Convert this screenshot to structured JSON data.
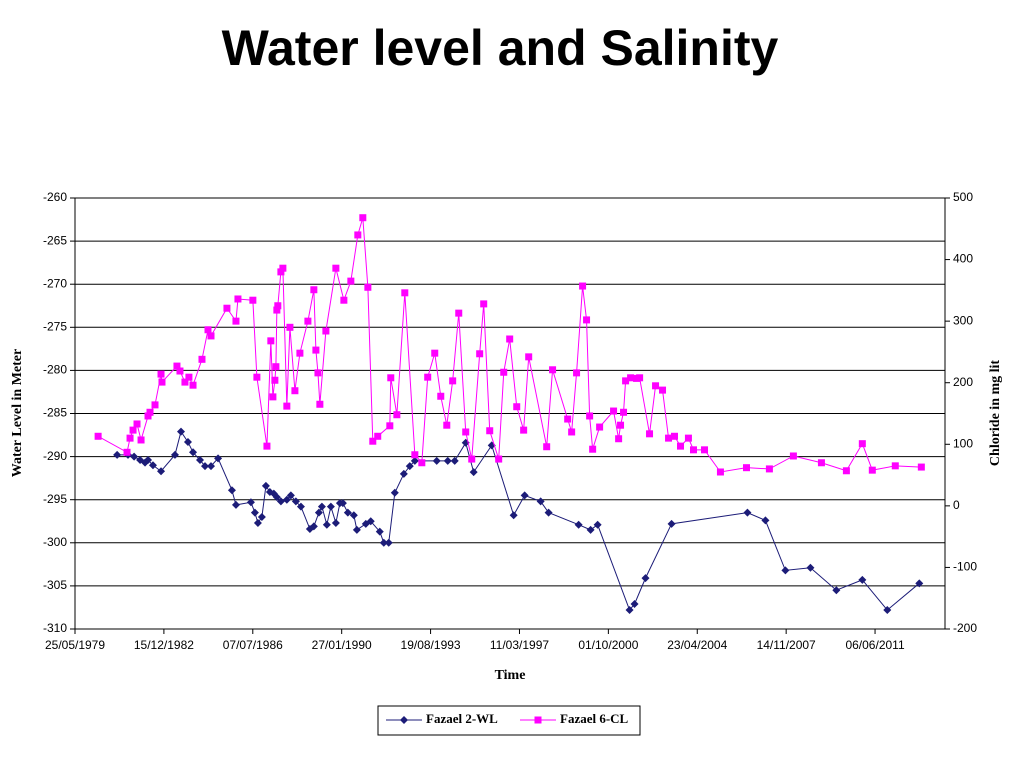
{
  "chart_data": {
    "type": "line",
    "title": "Water level and Salinity",
    "x_label": "Time",
    "y_label": "Water Level in Meter",
    "y2_label": "Chloride in mg lit",
    "xlim": [
      "25/05/1979",
      "25/03/2014"
    ],
    "xticks": [
      "25/05/1979",
      "15/12/1982",
      "07/07/1986",
      "27/01/1990",
      "19/08/1993",
      "11/03/1997",
      "01/10/2000",
      "23/04/2004",
      "14/11/2007",
      "06/06/2011"
    ],
    "ylim": [
      -310,
      -260
    ],
    "yticks": [
      -310,
      -305,
      -300,
      -295,
      -290,
      -285,
      -280,
      -275,
      -270,
      -265,
      -260
    ],
    "y2lim": [
      -200,
      500
    ],
    "y2ticks": [
      -200,
      -100,
      0,
      100,
      200,
      300,
      400,
      500
    ],
    "grid": true,
    "legend": "bottom",
    "series": [
      {
        "name": "Fazael 2-WL",
        "color": "#1c1c78",
        "marker": "diamond",
        "x": [
          "30/01/1981",
          "08/07/1981",
          "05/10/1981",
          "01/01/1982",
          "14/03/1982",
          "27/04/1982",
          "08/07/1982",
          "03/11/1982",
          "26/05/1983",
          "22/08/1983",
          "02/12/1983",
          "14/02/1984",
          "26/05/1984",
          "07/08/1984",
          "03/11/1984",
          "14/02/1985",
          "05/09/1985",
          "03/11/1985",
          "10/06/1986",
          "07/08/1986",
          "20/09/1986",
          "17/11/1986",
          "15/01/1987",
          "14/03/1987",
          "11/05/1987",
          "24/06/1987",
          "22/08/1987",
          "17/11/1987",
          "15/01/1988",
          "28/03/1988",
          "10/06/1988",
          "19/10/1988",
          "16/12/1988",
          "28/02/1989",
          "13/04/1989",
          "24/06/1989",
          "22/08/1989",
          "03/11/1989",
          "01/01/1990",
          "14/02/1990",
          "27/04/1990",
          "24/07/1990",
          "06/09/1990",
          "15/01/1991",
          "28/03/1991",
          "07/08/1991",
          "05/10/1991",
          "16/12/1991",
          "14/03/1992",
          "24/07/1992",
          "19/10/1992",
          "01/01/1993",
          "17/11/1993",
          "27/04/1994",
          "07/08/1994",
          "15/01/1995",
          "11/05/1995",
          "30/01/1996",
          "16/12/1996",
          "26/05/1997",
          "15/01/1998",
          "11/05/1998",
          "24/07/1999",
          "15/01/2000",
          "27/04/2000",
          "07/08/2001",
          "19/10/2001",
          "28/03/2002",
          "13/04/2003",
          "27/04/2006",
          "15/01/2007",
          "03/11/2007",
          "03/11/2008",
          "17/11/2009",
          "02/12/2010",
          "02/12/2011",
          "14/03/2013"
        ],
        "values": [
          -289.8,
          -289.8,
          -290.0,
          -290.4,
          -290.7,
          -290.4,
          -291.0,
          -291.7,
          -289.8,
          -287.1,
          -288.3,
          -289.5,
          -290.4,
          -291.1,
          -291.1,
          -290.2,
          -293.9,
          -295.6,
          -295.3,
          -296.5,
          -297.7,
          -297.0,
          -293.4,
          -294.1,
          -294.3,
          -294.7,
          -295.2,
          -295.0,
          -294.5,
          -295.2,
          -295.8,
          -298.4,
          -298.1,
          -296.5,
          -295.8,
          -297.9,
          -295.8,
          -297.7,
          -295.4,
          -295.4,
          -296.5,
          -296.8,
          -298.5,
          -297.8,
          -297.5,
          -298.7,
          -300.0,
          -300.0,
          -294.2,
          -292.0,
          -291.1,
          -290.5,
          -290.5,
          -290.5,
          -290.5,
          -288.4,
          -291.8,
          -288.7,
          -296.8,
          -294.5,
          -295.2,
          -296.5,
          -297.9,
          -298.5,
          -297.9,
          -307.8,
          -307.1,
          -304.1,
          -297.8,
          -296.5,
          -297.4,
          -303.2,
          -302.9,
          -305.5,
          -304.3,
          -307.8,
          -304.7
        ]
      },
      {
        "name": "Fazael 6-CL",
        "color": "#ff00ff",
        "marker": "square",
        "axis": "y2",
        "x": [
          "27/04/1980",
          "24/06/1981",
          "07/08/1981",
          "20/09/1981",
          "17/11/1981",
          "15/01/1982",
          "27/04/1982",
          "26/05/1982",
          "07/08/1982",
          "03/11/1982",
          "17/11/1982",
          "24/06/1983",
          "07/08/1983",
          "19/10/1983",
          "16/12/1983",
          "14/02/1984",
          "24/06/1984",
          "20/09/1984",
          "03/11/1984",
          "24/06/1985",
          "03/11/1985",
          "02/12/1985",
          "08/07/1986",
          "05/09/1986",
          "30/01/1987",
          "28/03/1987",
          "27/04/1987",
          "26/05/1987",
          "10/06/1987",
          "24/06/1987",
          "08/07/1987",
          "22/08/1987",
          "20/09/1987",
          "17/11/1987",
          "01/01/1988",
          "14/03/1988",
          "26/05/1988",
          "20/09/1988",
          "16/12/1988",
          "15/01/1989",
          "14/02/1989",
          "14/03/1989",
          "10/06/1989",
          "03/11/1989",
          "28/02/1990",
          "10/06/1990",
          "20/09/1990",
          "02/12/1990",
          "14/02/1991",
          "27/04/1991",
          "08/07/1991",
          "01/01/1992",
          "15/01/1992",
          "13/04/1992",
          "07/08/1992",
          "01/01/1993",
          "13/04/1993",
          "08/07/1993",
          "19/10/1993",
          "15/01/1994",
          "13/04/1994",
          "08/07/1994",
          "05/10/1994",
          "15/01/1995",
          "13/04/1995",
          "07/08/1995",
          "05/10/1995",
          "01/01/1996",
          "11/05/1996",
          "24/07/1996",
          "19/10/1996",
          "30/01/1997",
          "11/05/1997",
          "24/07/1997",
          "13/04/1998",
          "08/07/1998",
          "14/02/1999",
          "13/04/1999",
          "24/06/1999",
          "20/09/1999",
          "17/11/1999",
          "01/01/2000",
          "14/02/2000",
          "26/05/2000",
          "16/12/2000",
          "28/02/2001",
          "28/03/2001",
          "11/05/2001",
          "10/06/2001",
          "22/08/2001",
          "17/11/2001",
          "01/01/2002",
          "26/05/2002",
          "22/08/2002",
          "02/12/2002",
          "28/02/2003",
          "26/05/2003",
          "22/08/2003",
          "16/12/2003",
          "28/02/2004",
          "07/08/2004",
          "28/03/2005",
          "13/04/2006",
          "14/03/2007",
          "28/02/2008",
          "13/04/2009",
          "13/04/2010",
          "02/12/2010",
          "27/04/2011",
          "28/03/2012",
          "13/04/2013"
        ],
        "values": [
          113,
          87,
          110,
          123,
          133,
          107,
          146,
          152,
          164,
          214,
          201,
          227,
          219,
          201,
          209,
          196,
          238,
          286,
          276,
          321,
          300,
          336,
          334,
          209,
          97,
          268,
          177,
          204,
          226,
          318,
          325,
          380,
          386,
          162,
          290,
          187,
          248,
          300,
          351,
          253,
          216,
          165,
          284,
          386,
          334,
          365,
          440,
          468,
          355,
          105,
          113,
          130,
          208,
          148,
          346,
          83,
          70,
          209,
          248,
          178,
          131,
          203,
          313,
          120,
          76,
          247,
          328,
          122,
          76,
          217,
          271,
          161,
          123,
          242,
          96,
          221,
          141,
          120,
          216,
          357,
          302,
          146,
          92,
          128,
          154,
          109,
          131,
          152,
          203,
          208,
          207,
          208,
          117,
          195,
          188,
          110,
          113,
          97,
          110,
          91,
          91,
          55,
          62,
          60,
          81,
          70,
          57,
          101,
          58,
          65,
          63
        ]
      }
    ]
  }
}
